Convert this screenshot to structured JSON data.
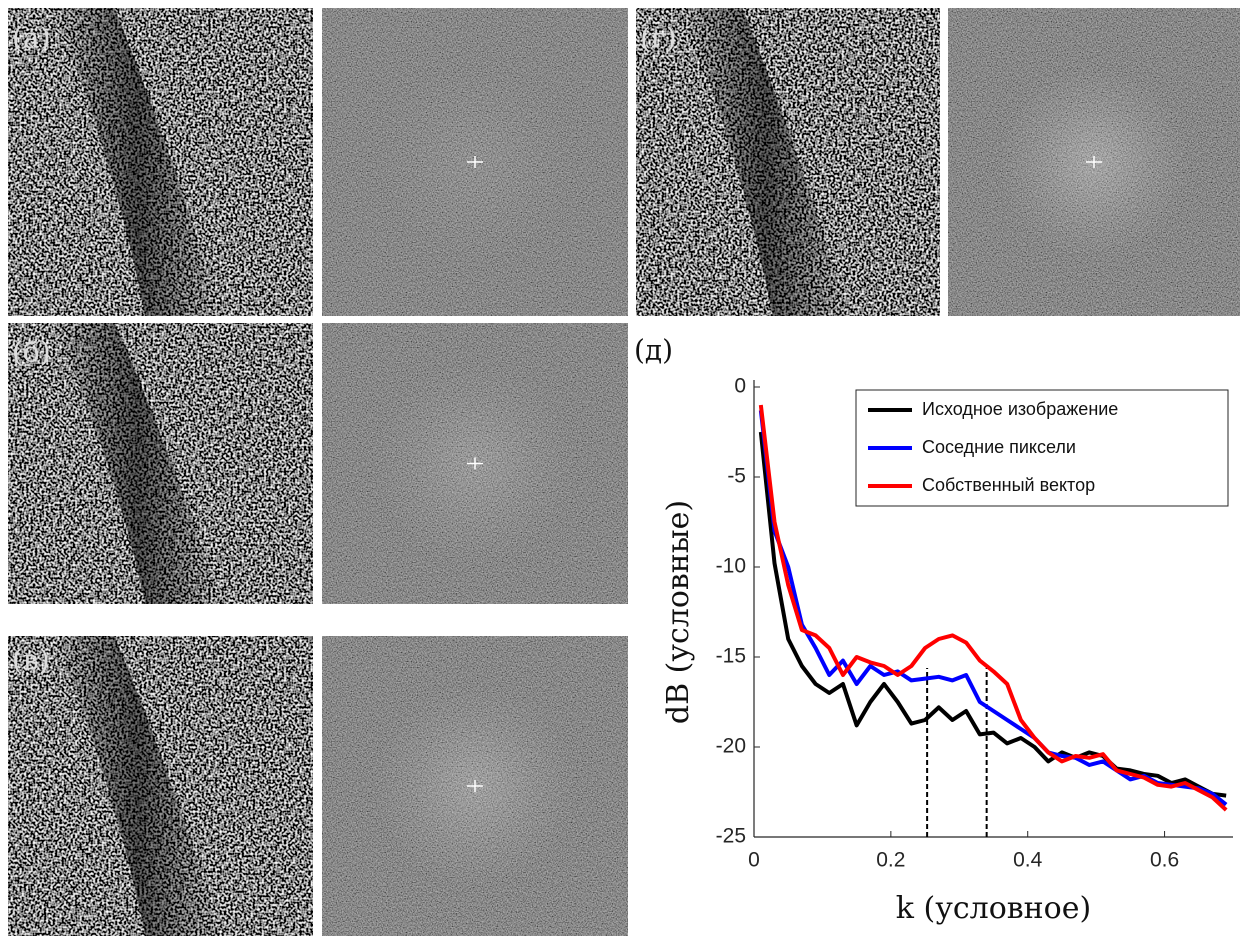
{
  "panels": {
    "labels": [
      "(а)",
      "(б)",
      "(в)",
      "(г)",
      "(д)"
    ]
  },
  "chart_data": {
    "type": "line",
    "xlabel": "k (условное)",
    "ylabel": "dB  (условные)",
    "xlim": [
      0,
      0.7
    ],
    "xticks": [
      0,
      0.2,
      0.4,
      0.6
    ],
    "ylim": [
      -25,
      0
    ],
    "yticks": [
      -25,
      -20,
      -15,
      -10,
      -5,
      0
    ],
    "vlines": [
      0.253,
      0.34
    ],
    "x": [
      0.01,
      0.03,
      0.05,
      0.07,
      0.09,
      0.11,
      0.13,
      0.15,
      0.17,
      0.19,
      0.21,
      0.23,
      0.25,
      0.27,
      0.29,
      0.31,
      0.33,
      0.35,
      0.37,
      0.39,
      0.41,
      0.43,
      0.45,
      0.47,
      0.49,
      0.51,
      0.53,
      0.55,
      0.57,
      0.59,
      0.61,
      0.63,
      0.65,
      0.67,
      0.69
    ],
    "series": [
      {
        "name": "Исходное изображение",
        "color": "#000000",
        "values": [
          -2.5,
          -9.8,
          -14,
          -15.5,
          -16.5,
          -17,
          -16.5,
          -18.8,
          -17.5,
          -16.5,
          -17.5,
          -18.7,
          -18.5,
          -17.8,
          -18.5,
          -18,
          -19.3,
          -19.2,
          -19.8,
          -19.5,
          -20,
          -20.8,
          -20.3,
          -20.6,
          -20.3,
          -20.5,
          -21.2,
          -21.3,
          -21.5,
          -21.6,
          -22,
          -21.8,
          -22.2,
          -22.6,
          -22.7
        ]
      },
      {
        "name": "Соседние пиксели",
        "color": "#0000ff",
        "values": [
          -1.3,
          -8,
          -10,
          -13.2,
          -14.5,
          -16,
          -15.2,
          -16.5,
          -15.5,
          -16,
          -15.8,
          -16.3,
          -16.2,
          -16.1,
          -16.3,
          -16,
          -17.5,
          -18,
          -18.5,
          -19,
          -19.5,
          -20.3,
          -20.5,
          -20.6,
          -21,
          -20.8,
          -21.3,
          -21.8,
          -21.6,
          -22,
          -22.1,
          -22.2,
          -22.3,
          -22.6,
          -23.2
        ]
      },
      {
        "name": "Собственный вектор",
        "color": "#ff0000",
        "values": [
          -1,
          -7.5,
          -11,
          -13.5,
          -13.8,
          -14.5,
          -16,
          -15,
          -15.3,
          -15.5,
          -16,
          -15.5,
          -14.5,
          -14,
          -13.8,
          -14.2,
          -15.2,
          -15.8,
          -16.5,
          -18.5,
          -19.5,
          -20.3,
          -20.8,
          -20.5,
          -20.6,
          -20.4,
          -21.3,
          -21.5,
          -21.7,
          -22.1,
          -22.2,
          -22,
          -22.4,
          -22.8,
          -23.5
        ]
      }
    ]
  }
}
